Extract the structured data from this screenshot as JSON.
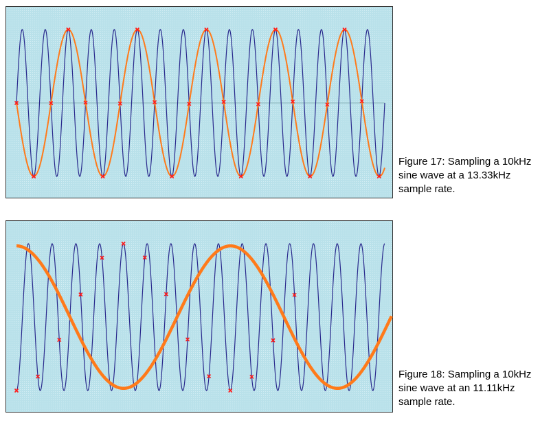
{
  "colors": {
    "panel_background": "#b9e1ea",
    "panel_dots": "#d4eef4",
    "panel_border": "#333333",
    "source_wave": "#28288c",
    "sampled_wave": "#ff7a1a",
    "sample_marker": "#ff1a1a"
  },
  "figures": [
    {
      "caption_lines": [
        "Figure 17: Sampling a 10kHz",
        "sine wave at a 13.33kHz",
        "sample rate."
      ],
      "signal_freq_khz": 10,
      "sample_rate_khz": 13.33,
      "source_cycles_shown": 16,
      "sample_phase_cycles": 0,
      "samples_shown": 22,
      "alias_amplitude": 1.0,
      "alias_line_weight": "normal"
    },
    {
      "caption_lines": [
        "Figure 18: Sampling a 10kHz",
        "sine wave at an 11.11kHz",
        "sample rate."
      ],
      "signal_freq_khz": 10,
      "sample_rate_khz": 11.11,
      "source_cycles_shown": 15.5,
      "sample_phase_cycles": 0.75,
      "samples_shown": 14,
      "alias_amplitude": 0.97,
      "alias_line_weight": "bold"
    }
  ]
}
